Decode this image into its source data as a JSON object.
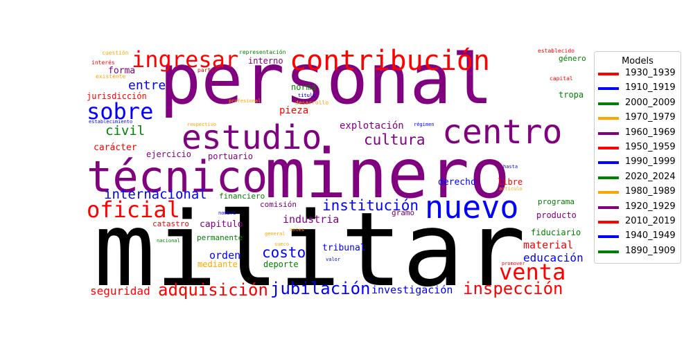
{
  "chart_data": {
    "type": "wordcloud",
    "legend": {
      "title": "Models",
      "placement": "right",
      "entries": [
        {
          "name": "1930_1939",
          "color": "#ff0000"
        },
        {
          "name": "1910_1919",
          "color": "#0000ff"
        },
        {
          "name": "2000_2009",
          "color": "#008000"
        },
        {
          "name": "1970_1979",
          "color": "#ffa500"
        },
        {
          "name": "1960_1969",
          "color": "#800080"
        },
        {
          "name": "1950_1959",
          "color": "#ff0000"
        },
        {
          "name": "1990_1999",
          "color": "#0000ff"
        },
        {
          "name": "2020_2024",
          "color": "#008000"
        },
        {
          "name": "1980_1989",
          "color": "#ffa500"
        },
        {
          "name": "1920_1929",
          "color": "#800080"
        },
        {
          "name": "2010_2019",
          "color": "#ff0000"
        },
        {
          "name": "1940_1949",
          "color": "#0000ff"
        },
        {
          "name": "1890_1909",
          "color": "#008000"
        }
      ]
    },
    "words": [
      {
        "text": "militar",
        "color": "#000000",
        "weight": 100
      },
      {
        "text": "personal",
        "color": "#800080",
        "weight": 82
      },
      {
        "text": "minero",
        "color": "#800080",
        "weight": 78
      },
      {
        "text": "técnico",
        "color": "#800080",
        "weight": 50
      },
      {
        "text": "estudio",
        "color": "#800080",
        "weight": 38
      },
      {
        "text": "centro",
        "color": "#800080",
        "weight": 38
      },
      {
        "text": "nuevo",
        "color": "#0000ff",
        "weight": 36
      },
      {
        "text": "contribución",
        "color": "#ff0000",
        "weight": 33
      },
      {
        "text": "ingresar",
        "color": "#ff0000",
        "weight": 28
      },
      {
        "text": "venta",
        "color": "#ff0000",
        "weight": 27
      },
      {
        "text": "sobre",
        "color": "#0000ff",
        "weight": 25
      },
      {
        "text": "oficial",
        "color": "#ff0000",
        "weight": 25
      },
      {
        "text": "jubilación",
        "color": "#0000ff",
        "weight": 21
      },
      {
        "text": "inspección",
        "color": "#ff0000",
        "weight": 21
      },
      {
        "text": "adquisición",
        "color": "#ff0000",
        "weight": 20
      },
      {
        "text": "institución",
        "color": "#0000ff",
        "weight": 19
      },
      {
        "text": "costo",
        "color": "#0000ff",
        "weight": 18
      },
      {
        "text": "cultura",
        "color": "#800080",
        "weight": 17
      },
      {
        "text": "internacional",
        "color": "#0000ff",
        "weight": 17
      },
      {
        "text": "civil",
        "color": "#008000",
        "weight": 17
      },
      {
        "text": "entre",
        "color": "#0000ff",
        "weight": 15
      },
      {
        "text": "seguridad",
        "color": "#ff0000",
        "weight": 14
      },
      {
        "text": "educación",
        "color": "#0000ff",
        "weight": 14
      },
      {
        "text": "industria",
        "color": "#800080",
        "weight": 13
      },
      {
        "text": "material",
        "color": "#ff0000",
        "weight": 13
      },
      {
        "text": "investigación",
        "color": "#0000ff",
        "weight": 13
      },
      {
        "text": "orden",
        "color": "#0000ff",
        "weight": 13
      },
      {
        "text": "explotación",
        "color": "#800080",
        "weight": 12
      },
      {
        "text": "pieza",
        "color": "#ff0000",
        "weight": 12
      },
      {
        "text": "derecho",
        "color": "#0000ff",
        "weight": 11
      },
      {
        "text": "forma",
        "color": "#800080",
        "weight": 11
      },
      {
        "text": "carácter",
        "color": "#ff0000",
        "weight": 11
      },
      {
        "text": "tribunal",
        "color": "#0000ff",
        "weight": 11
      },
      {
        "text": "capitulo",
        "color": "#800080",
        "weight": 11
      },
      {
        "text": "titulo",
        "color": "#800080",
        "weight": 11
      },
      {
        "text": "jurisdicción",
        "color": "#ff0000",
        "weight": 10
      },
      {
        "text": "ejercicio",
        "color": "#800080",
        "weight": 10
      },
      {
        "text": "portuario",
        "color": "#800080",
        "weight": 10
      },
      {
        "text": "tropa",
        "color": "#008000",
        "weight": 10
      },
      {
        "text": "norma",
        "color": "#008000",
        "weight": 10
      },
      {
        "text": "libre",
        "color": "#ff0000",
        "weight": 10
      },
      {
        "text": "fiduciario",
        "color": "#008000",
        "weight": 10
      },
      {
        "text": "mediante",
        "color": "#ffa500",
        "weight": 10
      },
      {
        "text": "deporte",
        "color": "#008000",
        "weight": 10
      },
      {
        "text": "interno",
        "color": "#800080",
        "weight": 10
      },
      {
        "text": "producto",
        "color": "#800080",
        "weight": 10
      },
      {
        "text": "programa",
        "color": "#008000",
        "weight": 9
      },
      {
        "text": "financiero",
        "color": "#008000",
        "weight": 9
      },
      {
        "text": "permanente",
        "color": "#008000",
        "weight": 9
      },
      {
        "text": "comisión",
        "color": "#800080",
        "weight": 9
      },
      {
        "text": "gramo",
        "color": "#800080",
        "weight": 9
      },
      {
        "text": "catastro",
        "color": "#ff0000",
        "weight": 9
      },
      {
        "text": "género",
        "color": "#008000",
        "weight": 9
      },
      {
        "text": "partir",
        "color": "#ff0000",
        "weight": 6
      },
      {
        "text": "representación",
        "color": "#008000",
        "weight": 6
      },
      {
        "text": "cuestión",
        "color": "#ffa500",
        "weight": 6
      },
      {
        "text": "establecido",
        "color": "#ff0000",
        "weight": 6
      },
      {
        "text": "capital",
        "color": "#ff0000",
        "weight": 6
      },
      {
        "text": "interés",
        "color": "#ff0000",
        "weight": 5
      },
      {
        "text": "existente",
        "color": "#ffa500",
        "weight": 5
      },
      {
        "text": "profesional",
        "color": "#ffa500",
        "weight": 5
      },
      {
        "text": "desarrollo",
        "color": "#ffa500",
        "weight": 5
      },
      {
        "text": "titulo",
        "color": "#0000ff",
        "weight": 5
      },
      {
        "text": "establecimiento",
        "color": "#0000ff",
        "weight": 5
      },
      {
        "text": "respectivo",
        "color": "#ffa500",
        "weight": 5
      },
      {
        "text": "régimen",
        "color": "#0000ff",
        "weight": 5
      },
      {
        "text": "hasta",
        "color": "#0000ff",
        "weight": 5
      },
      {
        "text": "artículo",
        "color": "#ffa500",
        "weight": 5
      },
      {
        "text": "nombre",
        "color": "#0000ff",
        "weight": 5
      },
      {
        "text": "nacional",
        "color": "#008000",
        "weight": 5
      },
      {
        "text": "general",
        "color": "#ffa500",
        "weight": 5
      },
      {
        "text": "antes",
        "color": "#ffa500",
        "weight": 5
      },
      {
        "text": "sueco",
        "color": "#ffa500",
        "weight": 5
      },
      {
        "text": "valor",
        "color": "#0000ff",
        "weight": 5
      },
      {
        "text": "promover",
        "color": "#ff0000",
        "weight": 5
      }
    ]
  }
}
